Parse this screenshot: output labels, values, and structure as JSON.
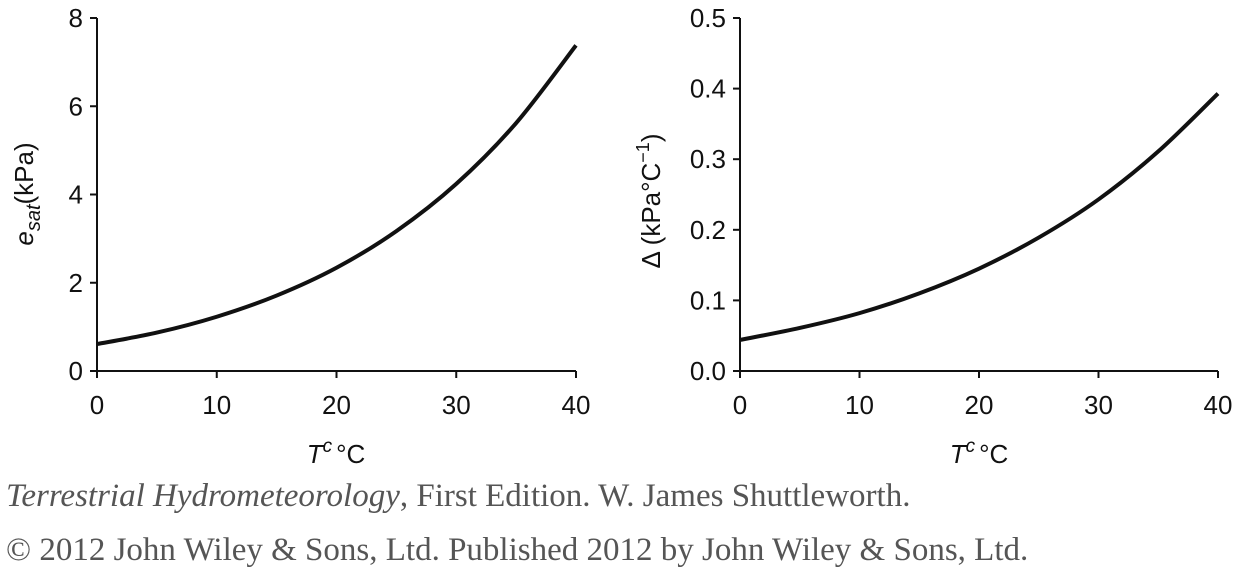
{
  "chart_data": [
    {
      "type": "line",
      "xlabel_var": "T",
      "xlabel_sup": "c",
      "xlabel_unit": "°C",
      "ylabel_var": "e",
      "ylabel_sub": "sat",
      "ylabel_unit": "(kPa)",
      "xlim": [
        0,
        40
      ],
      "ylim": [
        0,
        8
      ],
      "xticks": [
        "0",
        "10",
        "20",
        "30",
        "40"
      ],
      "yticks": [
        "0",
        "2",
        "4",
        "6",
        "8"
      ],
      "grid": false,
      "x": [
        0,
        5,
        10,
        15,
        20,
        25,
        30,
        35,
        40
      ],
      "series": [
        {
          "values": [
            0.61,
            0.87,
            1.23,
            1.71,
            2.34,
            3.17,
            4.24,
            5.62,
            7.38
          ],
          "color": "#111111"
        }
      ]
    },
    {
      "type": "line",
      "xlabel_var": "T",
      "xlabel_sup": "c",
      "xlabel_unit": "°C",
      "ylabel_prefix": "Δ (kPa°C",
      "ylabel_sup": "−1",
      "ylabel_suffix": ")",
      "xlim": [
        0,
        40
      ],
      "ylim": [
        0,
        0.5
      ],
      "xticks": [
        "0",
        "10",
        "20",
        "30",
        "40"
      ],
      "yticks": [
        "0.0",
        "0.1",
        "0.2",
        "0.3",
        "0.4",
        "0.5"
      ],
      "grid": false,
      "x": [
        0,
        5,
        10,
        15,
        20,
        25,
        30,
        35,
        40
      ],
      "series": [
        {
          "values": [
            0.044,
            0.061,
            0.082,
            0.11,
            0.145,
            0.189,
            0.243,
            0.311,
            0.393
          ],
          "color": "#111111"
        }
      ]
    }
  ],
  "caption": {
    "book_title": "Terrestrial Hydrometeorology",
    "line1_rest": ", First Edition. W. James Shuttleworth.",
    "line2": "© 2012 John Wiley & Sons, Ltd. Published 2012 by John Wiley & Sons, Ltd."
  }
}
